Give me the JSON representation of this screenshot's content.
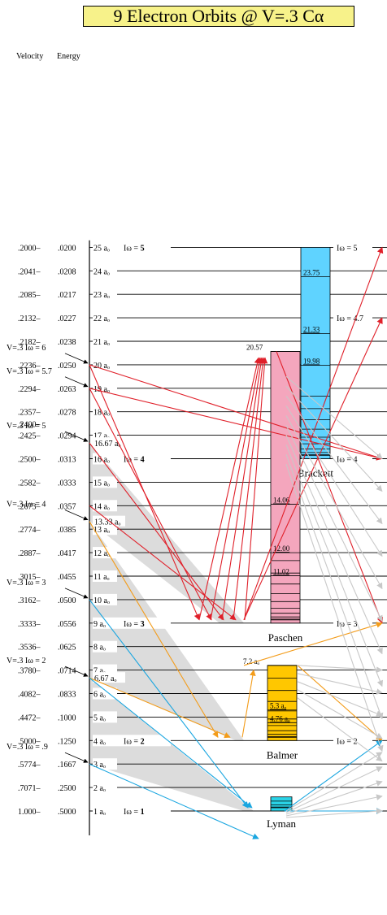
{
  "title": "9 Electron Orbits @ V=.3 Cα",
  "header": {
    "velocity": "Velocity",
    "energy": "Energy"
  },
  "orbit_suffix": "aₒ",
  "iomega_label": "Iω =",
  "levels": [
    {
      "r": 25,
      "v": ".2000",
      "e": ".0200",
      "iw": "5"
    },
    {
      "r": 24,
      "v": ".2041",
      "e": ".0208"
    },
    {
      "r": 23,
      "v": ".2085",
      "e": ".0217"
    },
    {
      "r": 22,
      "v": ".2132",
      "e": ".0227"
    },
    {
      "r": 21,
      "v": ".2182",
      "e": ".0238"
    },
    {
      "r": 20,
      "v": ".2236",
      "e": ".0250"
    },
    {
      "r": 19,
      "v": ".2294",
      "e": ".0263"
    },
    {
      "r": 18,
      "v": ".2357",
      "e": ".0278"
    },
    {
      "r": 17,
      "v": ".2425",
      "e": ".0294",
      "v_extra": ".2400"
    },
    {
      "r": 16,
      "v": ".2500",
      "e": ".0313",
      "iw": "4"
    },
    {
      "r": 15,
      "v": ".2582",
      "e": ".0333"
    },
    {
      "r": 14,
      "v": ".2673",
      "e": ".0357"
    },
    {
      "r": 13,
      "v": ".2774",
      "e": ".0385"
    },
    {
      "r": 12,
      "v": ".2887",
      "e": ".0417"
    },
    {
      "r": 11,
      "v": ".3015",
      "e": ".0455"
    },
    {
      "r": 10,
      "v": ".3162",
      "e": ".0500"
    },
    {
      "r": 9,
      "v": ".3333",
      "e": ".0556",
      "iw": "3"
    },
    {
      "r": 8,
      "v": ".3536",
      "e": ".0625"
    },
    {
      "r": 7,
      "v": ".3780",
      "e": ".0714"
    },
    {
      "r": 6,
      "v": ".4082",
      "e": ".0833"
    },
    {
      "r": 5,
      "v": ".4472",
      "e": ".1000"
    },
    {
      "r": 4,
      "v": ".5000",
      "e": ".1250",
      "iw": "2"
    },
    {
      "r": 3,
      "v": ".5774",
      "e": ".1667"
    },
    {
      "r": 2,
      "v": ".7071",
      "e": ".2500"
    },
    {
      "r": 1,
      "v": "1.000",
      "e": ".5000",
      "iw": "1"
    }
  ],
  "v03_labels": [
    {
      "text": "V=.3  Iω = 6",
      "r": 20
    },
    {
      "text": "V=.3  Iω = 5.7",
      "r": 19
    },
    {
      "text": "V=.3  Iω = 5",
      "r": 16.67,
      "orbit": "16.67 aₒ"
    },
    {
      "text": "V=.3  Iω = 4",
      "r": 13.33,
      "orbit": "13.33 aₒ"
    },
    {
      "text": "V=.3  Iω = 3",
      "r": 10
    },
    {
      "text": "V=.3  Iω = 2",
      "r": 6.67,
      "orbit": "6.67 aₒ"
    },
    {
      "text": "V=.3  Iω = .9",
      "r": 3
    }
  ],
  "right_labels": [
    {
      "text": "Iω = 5",
      "r": 25
    },
    {
      "text": "Iω = 4.7",
      "r": 22
    },
    {
      "text": "Iω = 4",
      "r": 16
    },
    {
      "text": "Iω = 3",
      "r": 9
    },
    {
      "text": "Iω = 2",
      "r": 4
    }
  ],
  "series": [
    {
      "name": "Brackett",
      "top": 25,
      "bottom": 16,
      "color": "#5fd3ff",
      "marks": [
        {
          "r": 23.75,
          "label": "23.75"
        },
        {
          "r": 21.33,
          "label": "21.33"
        },
        {
          "r": 19.98,
          "label": "19.98"
        }
      ]
    },
    {
      "name": "Paschen",
      "top": 20.57,
      "bottom": 9,
      "color": "#f4a6bd",
      "marks": [
        {
          "r": 20.57,
          "label": "20.57"
        },
        {
          "r": 14.06,
          "label": "14.06"
        },
        {
          "r": 12.0,
          "label": "12.00"
        },
        {
          "r": 11.02,
          "label": "11.02"
        }
      ]
    },
    {
      "name": "Balmer",
      "top": 7.2,
      "bottom": 4,
      "color": "#ffc700",
      "marks": [
        {
          "r": 7.2,
          "label": "7.2 aₒ"
        },
        {
          "r": 5.3,
          "label": "5.3 aₒ"
        },
        {
          "r": 4.76,
          "label": "4.76 aₒ"
        }
      ]
    },
    {
      "name": "Lyman",
      "top": 1.6,
      "bottom": 1,
      "color": "#2ad2e6",
      "marks": []
    }
  ],
  "colors": {
    "title_bg": "#f7f28a",
    "red": "#e0202a",
    "orange": "#f39c1a",
    "blue": "#1aa6e0",
    "grey_region": "#dcdcdc",
    "grey_arrow": "#c8c8c8"
  }
}
